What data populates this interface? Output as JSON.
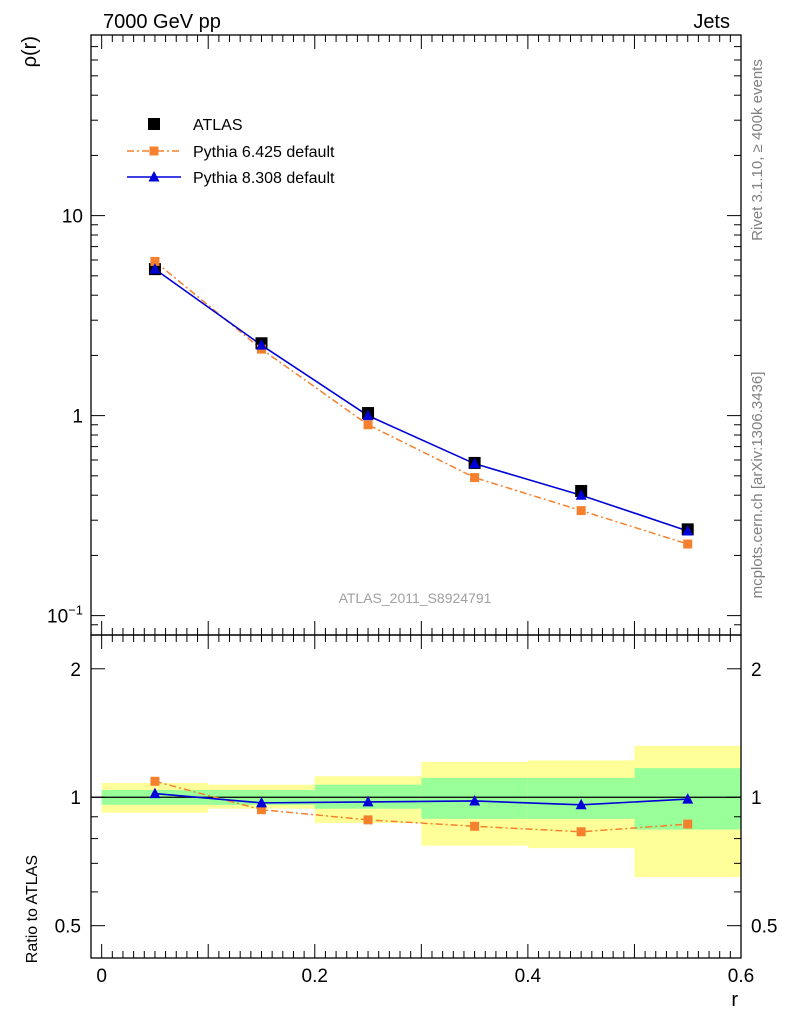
{
  "header": {
    "left_title": "7000 GeV pp",
    "right_title": "Jets"
  },
  "side_text": {
    "rivet": "Rivet 3.1.10, ≥ 400k events",
    "mcplots": "mcplots.cern.ch [arXiv:1306.3436]"
  },
  "watermark": "ATLAS_2011_S8924791",
  "colors": {
    "atlas": "#000000",
    "pythia6": "#f5812e",
    "pythia8": "#0000d8",
    "band_inner": "#99ff99",
    "band_outer": "#ffff99"
  },
  "chart_data": [
    {
      "type": "scatter",
      "ylabel": "ρ(r)",
      "xlabel": "",
      "yscale": "log",
      "ylim": [
        0.08,
        80
      ],
      "xlim": [
        -0.01,
        0.6
      ],
      "yticks": [
        {
          "value": 0.1,
          "base": "10",
          "exp": "−1"
        },
        {
          "value": 1,
          "label": "1"
        },
        {
          "value": 10,
          "label": "10"
        }
      ],
      "legend": {
        "placement": "top-left",
        "entries": [
          "ATLAS",
          "Pythia 6.425 default",
          "Pythia 8.308 default"
        ]
      },
      "series": [
        {
          "name": "ATLAS",
          "x": [
            0.05,
            0.15,
            0.25,
            0.35,
            0.45,
            0.55
          ],
          "y": [
            5.4,
            2.3,
            1.03,
            0.58,
            0.42,
            0.27
          ]
        },
        {
          "name": "Pythia 6.425 default",
          "x": [
            0.05,
            0.15,
            0.25,
            0.35,
            0.45,
            0.55
          ],
          "y": [
            5.9,
            2.15,
            0.9,
            0.49,
            0.335,
            0.228
          ]
        },
        {
          "name": "Pythia 8.308 default",
          "x": [
            0.05,
            0.15,
            0.25,
            0.35,
            0.45,
            0.55
          ],
          "y": [
            5.4,
            2.25,
            1.0,
            0.575,
            0.4,
            0.265
          ]
        }
      ]
    },
    {
      "type": "line",
      "ylabel": "Ratio to ATLAS",
      "xlabel": "r",
      "yscale": "log",
      "ylim": [
        0.42,
        2.4
      ],
      "xlim": [
        -0.01,
        0.6
      ],
      "xticks": [
        "0",
        "0.2",
        "0.4",
        "0.6"
      ],
      "xtick_values": [
        0,
        0.2,
        0.4,
        0.6
      ],
      "yticks": [
        {
          "value": 0.5,
          "label": "0.5"
        },
        {
          "value": 1,
          "label": "1"
        },
        {
          "value": 2,
          "label": "2"
        }
      ],
      "bands": [
        {
          "x0": 0.0,
          "x1": 0.1,
          "inner": [
            0.96,
            1.04
          ],
          "outer": [
            0.92,
            1.08
          ]
        },
        {
          "x0": 0.1,
          "x1": 0.2,
          "inner": [
            0.96,
            1.04
          ],
          "outer": [
            0.94,
            1.07
          ]
        },
        {
          "x0": 0.2,
          "x1": 0.3,
          "inner": [
            0.94,
            1.07
          ],
          "outer": [
            0.87,
            1.12
          ]
        },
        {
          "x0": 0.3,
          "x1": 0.4,
          "inner": [
            0.89,
            1.11
          ],
          "outer": [
            0.77,
            1.21
          ]
        },
        {
          "x0": 0.4,
          "x1": 0.5,
          "inner": [
            0.89,
            1.11
          ],
          "outer": [
            0.76,
            1.22
          ]
        },
        {
          "x0": 0.5,
          "x1": 0.6,
          "inner": [
            0.84,
            1.17
          ],
          "outer": [
            0.65,
            1.32
          ]
        }
      ],
      "series": [
        {
          "name": "Pythia 6.425 default",
          "x": [
            0.05,
            0.15,
            0.25,
            0.35,
            0.45,
            0.55
          ],
          "y": [
            1.09,
            0.935,
            0.885,
            0.855,
            0.83,
            0.865
          ]
        },
        {
          "name": "Pythia 8.308 default",
          "x": [
            0.05,
            0.15,
            0.25,
            0.35,
            0.45,
            0.55
          ],
          "y": [
            1.02,
            0.97,
            0.975,
            0.98,
            0.96,
            0.99
          ]
        }
      ]
    }
  ]
}
